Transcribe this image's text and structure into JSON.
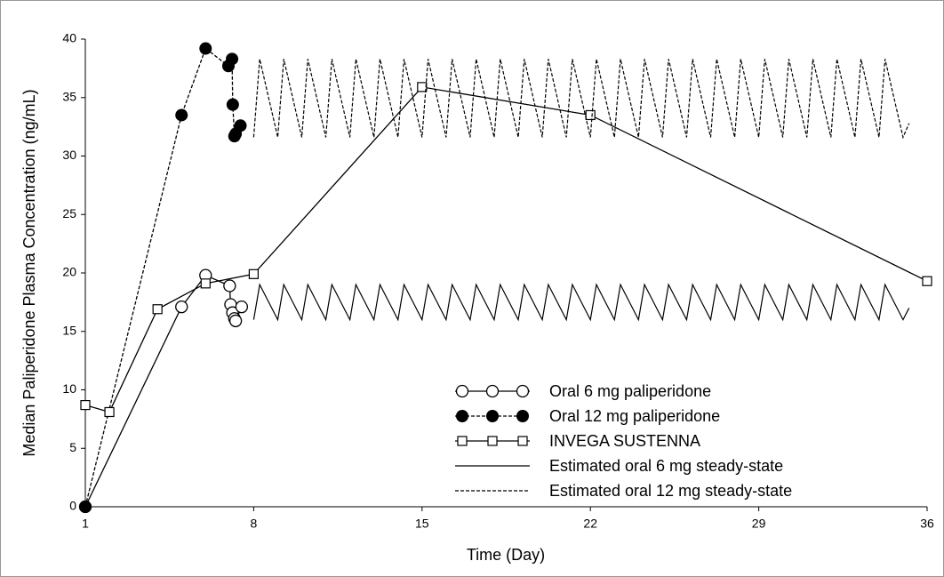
{
  "chart_data": {
    "type": "line",
    "xlabel": "Time (Day)",
    "ylabel": "Median Paliperidone Plasma Concentration (ng/mL)",
    "xlim": [
      1,
      36
    ],
    "xticks": [
      1,
      8,
      15,
      22,
      29,
      36
    ],
    "ylim": [
      0,
      40
    ],
    "yticks": [
      0,
      5,
      10,
      15,
      20,
      25,
      30,
      35,
      40
    ],
    "legend": "lower right",
    "series": [
      {
        "name": "Oral 6 mg paliperidone",
        "color": "#000000",
        "marker": "open-circle",
        "line_style": "solid",
        "x": [
          1,
          5,
          6,
          7,
          7.04,
          7.12,
          7.2,
          7.25,
          7.5
        ],
        "values": [
          0,
          17.1,
          19.8,
          18.9,
          17.3,
          16.6,
          16.1,
          15.9,
          17.1
        ]
      },
      {
        "name": "Oral 12 mg paliperidone",
        "color": "#000000",
        "marker": "filled-circle",
        "line_style": "dashed",
        "x": [
          1,
          5,
          6,
          6.95,
          7.1,
          7.13,
          7.2,
          7.25,
          7.45
        ],
        "values": [
          0,
          33.5,
          39.2,
          37.7,
          38.3,
          34.4,
          31.7,
          31.9,
          32.6
        ]
      },
      {
        "name": "INVEGA SUSTENNA",
        "color": "#000000",
        "marker": "square",
        "line_style": "solid",
        "x": [
          1,
          2,
          4,
          6,
          8,
          15,
          22,
          36
        ],
        "values": [
          8.7,
          8.1,
          16.9,
          19.1,
          19.9,
          35.9,
          33.5,
          19.3
        ]
      },
      {
        "name": "Estimated oral 6 mg steady-state",
        "color": "#000000",
        "marker": "none",
        "line_style": "solid",
        "x": [
          8,
          8.25,
          9,
          9.25,
          10,
          10.25,
          11,
          11.25,
          12,
          12.25,
          13,
          13.25,
          14,
          14.25,
          15,
          15.25,
          16,
          16.25,
          17,
          17.25,
          18,
          18.25,
          19,
          19.25,
          20,
          20.25,
          21,
          21.25,
          22,
          22.25,
          23,
          23.25,
          24,
          24.25,
          25,
          25.25,
          26,
          26.25,
          27,
          27.25,
          28,
          28.25,
          29,
          29.25,
          30,
          30.25,
          31,
          31.25,
          32,
          32.25,
          33,
          33.25,
          34,
          34.25,
          35,
          35.25
        ],
        "values": [
          16,
          19,
          16,
          19,
          16,
          19,
          16,
          19,
          16,
          19,
          16,
          19,
          16,
          19,
          16,
          19,
          16,
          19,
          16,
          19,
          16,
          19,
          16,
          19,
          16,
          19,
          16,
          19,
          16,
          19,
          16,
          19,
          16,
          19,
          16,
          19,
          16,
          19,
          16,
          19,
          16,
          19,
          16,
          19,
          16,
          19,
          16,
          19,
          16,
          19,
          16,
          19,
          16,
          19,
          16,
          17
        ]
      },
      {
        "name": "Estimated oral 12 mg steady-state",
        "color": "#000000",
        "marker": "none",
        "line_style": "dashed",
        "x": [
          8,
          8.25,
          9,
          9.25,
          10,
          10.25,
          11,
          11.25,
          12,
          12.25,
          13,
          13.25,
          14,
          14.25,
          15,
          15.25,
          16,
          16.25,
          17,
          17.25,
          18,
          18.25,
          19,
          19.25,
          20,
          20.25,
          21,
          21.25,
          22,
          22.25,
          23,
          23.25,
          24,
          24.25,
          25,
          25.25,
          26,
          26.25,
          27,
          27.25,
          28,
          28.25,
          29,
          29.25,
          30,
          30.25,
          31,
          31.25,
          32,
          32.25,
          33,
          33.25,
          34,
          34.25,
          35,
          35.25
        ],
        "values": [
          31.6,
          38.3,
          31.6,
          38.3,
          31.6,
          38.3,
          31.6,
          38.3,
          31.6,
          38.3,
          31.6,
          38.3,
          31.6,
          38.3,
          31.6,
          38.3,
          31.6,
          38.3,
          31.6,
          38.3,
          31.6,
          38.3,
          31.6,
          38.3,
          31.6,
          38.3,
          31.6,
          38.3,
          31.6,
          38.3,
          31.6,
          38.3,
          31.6,
          38.3,
          31.6,
          38.3,
          31.6,
          38.3,
          31.6,
          38.3,
          31.6,
          38.3,
          31.6,
          38.3,
          31.6,
          38.3,
          31.6,
          38.3,
          31.6,
          38.3,
          31.6,
          38.3,
          31.6,
          38.3,
          31.6,
          32.8
        ]
      }
    ]
  }
}
